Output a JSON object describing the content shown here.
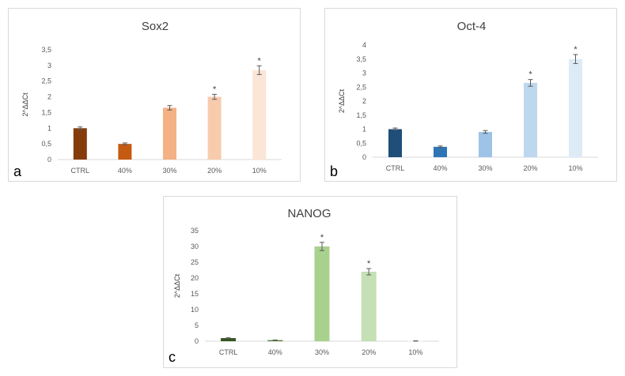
{
  "chart_data": [
    {
      "type": "bar",
      "panel_letter": "a",
      "title": "Sox2",
      "ylabel": "2^ΔΔCt",
      "xlabel": "",
      "categories": [
        "CTRL",
        "40%",
        "30%",
        "20%",
        "10%"
      ],
      "values": [
        1.0,
        0.5,
        1.65,
        2.0,
        2.85
      ],
      "errors": [
        0.04,
        0.03,
        0.07,
        0.08,
        0.14
      ],
      "significant": [
        "",
        "",
        "",
        "*",
        "*"
      ],
      "ylim": [
        0,
        3.5
      ],
      "yticks": [
        "0",
        "0,5",
        "1",
        "1,5",
        "2",
        "2,5",
        "3",
        "3,5"
      ],
      "colors": [
        "#843c0c",
        "#c55a11",
        "#f4b183",
        "#f8cbad",
        "#fbe5d6"
      ]
    },
    {
      "type": "bar",
      "panel_letter": "b",
      "title": "Oct-4",
      "ylabel": "2^ΔΔCt",
      "xlabel": "",
      "categories": [
        "CTRL",
        "40%",
        "30%",
        "20%",
        "10%"
      ],
      "values": [
        1.0,
        0.37,
        0.9,
        2.65,
        3.5
      ],
      "errors": [
        0.04,
        0.03,
        0.05,
        0.12,
        0.16
      ],
      "significant": [
        "",
        "",
        "",
        "*",
        "*"
      ],
      "ylim": [
        0,
        4
      ],
      "yticks": [
        "0",
        "0,5",
        "1",
        "1,5",
        "2",
        "2,5",
        "3",
        "3,5",
        "4"
      ],
      "colors": [
        "#1f4e79",
        "#2e75b6",
        "#9dc3e6",
        "#bdd7ee",
        "#ddebf7"
      ]
    },
    {
      "type": "bar",
      "panel_letter": "c",
      "title": "NANOG",
      "ylabel": "2^ΔΔCt",
      "xlabel": "",
      "categories": [
        "CTRL",
        "40%",
        "30%",
        "20%",
        "10%"
      ],
      "values": [
        1.0,
        0.35,
        30.0,
        22.0,
        0.1
      ],
      "errors": [
        0.1,
        0.05,
        1.3,
        1.0,
        0.05
      ],
      "significant": [
        "",
        "",
        "*",
        "*",
        ""
      ],
      "ylim": [
        0,
        35
      ],
      "yticks": [
        "0",
        "5",
        "10",
        "15",
        "20",
        "25",
        "30",
        "35"
      ],
      "colors": [
        "#375623",
        "#548235",
        "#a9d18e",
        "#c5e0b4",
        "#e2f0d9"
      ]
    }
  ]
}
